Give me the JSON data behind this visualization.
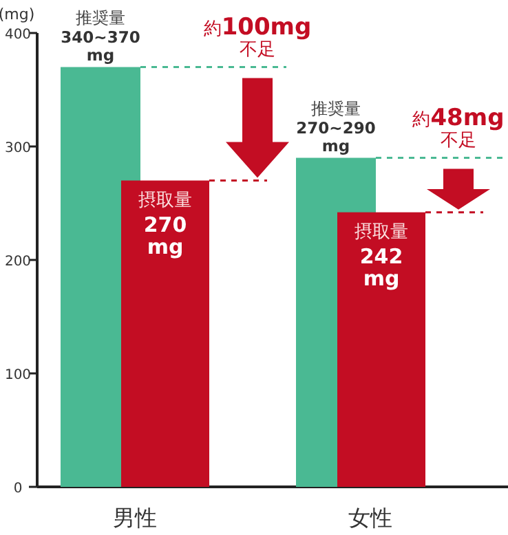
{
  "chart_data": {
    "type": "bar",
    "ylabel": "(mg)",
    "categories": [
      "男性",
      "女性"
    ],
    "series": [
      {
        "name": "推奨量",
        "color": "#4ab993",
        "values": [
          370,
          290
        ],
        "value_labels": [
          "340~370 mg",
          "270~290 mg"
        ]
      },
      {
        "name": "摂取量",
        "color": "#c30d23",
        "values": [
          270,
          242
        ],
        "value_labels": [
          "270 mg",
          "242 mg"
        ]
      }
    ],
    "ylim": [
      0,
      400
    ],
    "yticks": [
      0,
      100,
      200,
      300,
      400
    ],
    "annotations": [
      {
        "text": "約**100mg**\n不足",
        "x": "男性",
        "y": 370
      },
      {
        "text": "約**48mg**\n不足",
        "x": "女性",
        "y": 290
      }
    ]
  }
}
